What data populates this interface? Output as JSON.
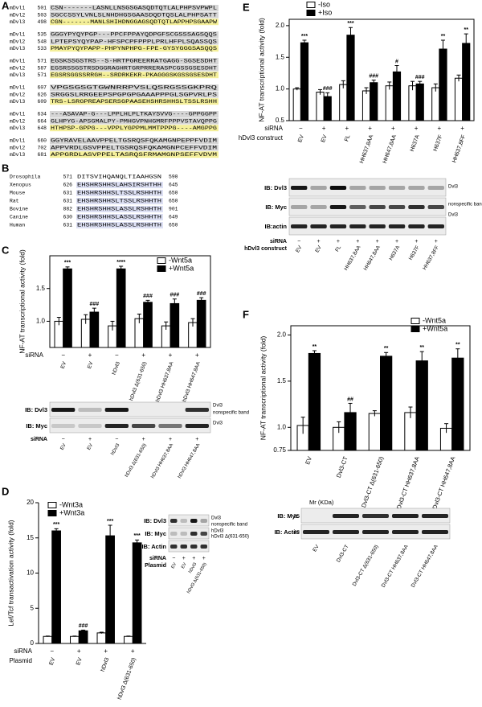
{
  "panel_labels": [
    "A",
    "B",
    "C",
    "D",
    "E",
    "F"
  ],
  "alignment_a": {
    "blocks": [
      [
        {
          "name": "mDvl1",
          "start": 501,
          "seq": "CSN-------LASNLLNSGSGASQDTQTLALPHPSVPWPL"
        },
        {
          "name": "mDvl2",
          "start": 503,
          "seq": "SGCCSSYLVNLSLNHDHGSGAASDQDTQSLALPHPSATT"
        },
        {
          "name": "mDvl3",
          "start": 498,
          "seq": "CGN-------MANLSHIHDNGGAGSQDTQTLAPPHPSGAAPW"
        }
      ],
      [
        {
          "name": "mDvl1",
          "start": 535,
          "seq": "GGGYPYQYPGP---PPCFPPAYQDPGFSCGSSSAGSQQS"
        },
        {
          "name": "mDvl2",
          "start": 548,
          "seq": "LPTEPSYQYPAP-HFSPCPFPPPLPRLHFPLSQASSQS"
        },
        {
          "name": "mDvl3",
          "start": 533,
          "seq": "PMAYPYQYPAPP-PHPYNPHPG-FPE-GYSYGGGSASQQS"
        }
      ],
      [
        {
          "name": "mDvl1",
          "start": 571,
          "seq": "EGSKSSGSTRS--S-HRTPGREERRATGAGG-SGSESDHT"
        },
        {
          "name": "mDvl2",
          "start": 587,
          "seq": "EGSRSSGSTRSDGGRAGHRTGRPRRERASPCGSSGSESDHT"
        },
        {
          "name": "mDvl3",
          "start": 571,
          "seq": "EGSRSGGSSRRGH--SRDRKEKR-PKAGGGSKGSSGSESDHT"
        }
      ],
      [
        {
          "name": "mDvl1",
          "start": 607,
          "seq": "VPGSGSGTGWNRRPVSLQSRGSSGKPRQ"
        },
        {
          "name": "mDvl2",
          "start": 626,
          "seq": "SRGGSLRRGEEPSPGPGPGAAAPPPGLSGPVRLPS"
        },
        {
          "name": "mDvl3",
          "start": 609,
          "seq": "TRS-LSRGPREAPSERSGPAASEHSHRSHHSLTSSLRSHH"
        }
      ],
      [
        {
          "name": "mDvl1",
          "start": 634,
          "seq": "---ASAVAP-G---LPPLHLPLTKAYSVVG----GPPGGPP"
        },
        {
          "name": "mDvl2",
          "start": 664,
          "seq": "GLHPYG-APSGMALPY-PMHGVPNHGMRFPPPVSTAVQPPG"
        },
        {
          "name": "mDvl3",
          "start": 648,
          "seq": "HTHPSP-GPPG---VPPLYGPPMLMMTPPPG----AMGPPG"
        }
      ],
      [
        {
          "name": "mDvl1",
          "start": 660,
          "seq": "GGYRAVELAAVPPELTGSRQSFQKAMGNPEPPFVDIM"
        },
        {
          "name": "mDvl2",
          "start": 702,
          "seq": "APPVRDLGSVPPELTGSRQSFQKAMGNPCEFFVDIM"
        },
        {
          "name": "mDvl3",
          "start": 681,
          "seq": "APPGRDLASVPPELTASRQSFRMAMGNPSEFFVDVM"
        }
      ]
    ]
  },
  "alignment_b": {
    "rows": [
      {
        "species": "Drosophila",
        "start": 571,
        "seq": "DITSVIHQANQLTIAAHGSN",
        "end": 590
      },
      {
        "species": "Xenopus",
        "start": 626,
        "seq": "EHSHRSHHSLAHSIRSHTHH",
        "end": 645
      },
      {
        "species": "Mouse",
        "start": 631,
        "seq": "EHSHRSHHSLTSSLRSHHTH",
        "end": 650
      },
      {
        "species": "Rat",
        "start": 631,
        "seq": "EHSHRSHHSLTSSLRSHHTH",
        "end": 650
      },
      {
        "species": "Bovine",
        "start": 882,
        "seq": "EHSHRSHHSLASSLRSHHTH",
        "end": 901
      },
      {
        "species": "Canine",
        "start": 630,
        "seq": "EHSHRSHHSLASSLRSHHTH",
        "end": 649
      },
      {
        "species": "Human",
        "start": 631,
        "seq": "EHSHRSHHSLASSLRSHHTH",
        "end": 650
      }
    ]
  },
  "chart_data": [
    {
      "type": "bar",
      "ylabel": "NF-AT transcriptional activity (fold)",
      "categories": [
        "EV",
        "EV",
        "hDvl3",
        "hDvl3 Δ(631-650)",
        "hDvl3 HH637,8AA",
        "hDvl3 HH647,8AA"
      ],
      "rows": [
        {
          "label": "siRNA",
          "values": [
            "−",
            "+",
            "−",
            "+",
            "+",
            "+"
          ]
        }
      ],
      "series": [
        {
          "name": "-Wnt5a",
          "color": "#ffffff",
          "values": [
            1.0,
            1.03,
            0.93,
            1.04,
            0.93,
            0.98
          ],
          "errors": [
            0.06,
            0.07,
            0.07,
            0.07,
            0.06,
            0.06
          ]
        },
        {
          "name": "+Wnt5a",
          "color": "#000000",
          "values": [
            1.8,
            1.14,
            1.8,
            1.29,
            1.27,
            1.32
          ],
          "errors": [
            0.03,
            0.06,
            0.04,
            0.03,
            0.07,
            0.04
          ],
          "annotations": [
            "***",
            "###",
            "****",
            "###",
            "###",
            "###"
          ]
        }
      ],
      "ylim": [
        0.6,
        2.0
      ],
      "yticks": [
        {
          "value": 1,
          "label": "1.0"
        },
        1.5
      ]
    },
    {
      "type": "bar",
      "ylabel": "Lef/Tcf transactivation activity (fold)",
      "categories": [
        "EV",
        "EV",
        "hDvl3",
        "hDvl3 Δ(631-650)"
      ],
      "category_label": "Plasmid",
      "rows": [
        {
          "label": "siRNA",
          "values": [
            "−",
            "+",
            "+",
            "+"
          ]
        }
      ],
      "series": [
        {
          "name": "-Wnt3a",
          "color": "#ffffff",
          "values": [
            1,
            1,
            1.5,
            1
          ],
          "errors": [
            0.05,
            0.05,
            0.1,
            0.05
          ]
        },
        {
          "name": "+Wnt3a",
          "color": "#000000",
          "values": [
            16,
            1.8,
            15.3,
            14.3
          ],
          "errors": [
            0.3,
            0.1,
            1.5,
            0.4
          ],
          "annotations": [
            "***",
            "###",
            "***",
            "***"
          ]
        }
      ],
      "ylim": [
        0,
        20
      ],
      "yticks": [
        0,
        5,
        10,
        15,
        20
      ]
    },
    {
      "type": "bar",
      "ylabel": "NF-AT transcriptional activity (fold)",
      "categories": [
        "EV",
        "EV",
        "FL",
        "HH637,8AA",
        "HH647,8AA",
        "H637A",
        "H637F",
        "HH637,8FF"
      ],
      "category_label": "hDvl3 construct",
      "rows": [
        {
          "label": "siRNA",
          "values": [
            "−",
            "+",
            "+",
            "+",
            "+",
            "+",
            "+",
            "+"
          ]
        }
      ],
      "series": [
        {
          "name": "-Iso",
          "color": "#ffffff",
          "values": [
            1.0,
            0.95,
            1.07,
            0.97,
            1.05,
            1.05,
            1.02,
            1.17
          ],
          "errors": [
            0.02,
            0.04,
            0.06,
            0.05,
            0.06,
            0.07,
            0.06,
            0.05
          ]
        },
        {
          "name": "+Iso",
          "color": "#000000",
          "values": [
            1.73,
            0.88,
            1.85,
            1.1,
            1.27,
            1.08,
            1.63,
            1.72
          ],
          "errors": [
            0.04,
            0.06,
            0.12,
            0.04,
            0.1,
            0.04,
            0.14,
            0.15
          ],
          "annotations": [
            "***",
            "###",
            "***",
            "###",
            "#",
            "###",
            "**",
            "**"
          ]
        }
      ],
      "ylim": [
        0.5,
        2.1
      ],
      "yticks": [
        0.5,
        {
          "value": 1,
          "label": "1.0"
        },
        1.5,
        {
          "value": 2,
          "label": "2.0"
        }
      ]
    },
    {
      "type": "bar",
      "ylabel": "NF-AT transcriptional activity (fold)",
      "categories": [
        "EV",
        "Dvl3-CT",
        "Dvl3-CT Δ(631-650)",
        "Dvl3-CT HH637,8AA",
        "Dvl3-CT HH647,8AA"
      ],
      "rows": [],
      "series": [
        {
          "name": "-Wnt5a",
          "color": "#ffffff",
          "values": [
            1.02,
            1.0,
            1.15,
            1.16,
            0.99
          ],
          "errors": [
            0.09,
            0.06,
            0.03,
            0.06,
            0.05
          ]
        },
        {
          "name": "+Wnt5a",
          "color": "#000000",
          "values": [
            1.8,
            1.16,
            1.77,
            1.72,
            1.75
          ],
          "errors": [
            0.03,
            0.1,
            0.04,
            0.1,
            0.1
          ],
          "annotations": [
            "**",
            "##",
            "**",
            "**",
            "**"
          ]
        }
      ],
      "ylim": [
        0.75,
        2.1
      ],
      "yticks": [
        0.75,
        {
          "value": 1,
          "label": "1.0"
        },
        1.5,
        {
          "value": 2,
          "label": "2.0"
        }
      ]
    }
  ],
  "blots": {
    "c": {
      "rows": [
        "IB: Dvl3",
        "IB: Myc"
      ],
      "right": [
        "Dvl3",
        "nonspecific band",
        "Dvl3"
      ],
      "row_labels": [
        "siRNA"
      ],
      "siRNA": [
        "−",
        "+",
        "−",
        "+",
        "+",
        "+"
      ],
      "lanes": [
        "EV",
        "EV",
        "hDvl3",
        "hDvl3 Δ(631-650)",
        "hDvl3 HH637,8AA",
        "hDvl3 HH647,8AA"
      ]
    },
    "d": {
      "rows": [
        "IB: Dvl3",
        "IB: Myc",
        "IB: Actin"
      ],
      "right": [
        "Dvl3",
        "nonspecific band",
        "hDvl3",
        "hDvl3 Δ(631-650)"
      ],
      "row_labels": [
        "siRNA",
        "Plasmid"
      ],
      "siRNA": [
        "−",
        "+",
        "+",
        "+"
      ],
      "lanes": [
        "EV",
        "EV",
        "hDvl3",
        "hDvl3 Δ(631-650)"
      ]
    },
    "e": {
      "rows": [
        "IB: Dvl3",
        "IB: Myc",
        "IB:actin"
      ],
      "right": [
        "Dvl3",
        "nonspecific bands",
        "Dvl3"
      ],
      "row_labels": [
        "siRNA",
        "hDvl3 construct"
      ],
      "siRNA": [
        "−",
        "+",
        "+",
        "+",
        "+",
        "+",
        "+",
        "+"
      ],
      "lanes": [
        "EV",
        "EV",
        "FL",
        "HH637,8AA",
        "HH647,8AA",
        "H637A",
        "H637F",
        "HH637,8FF"
      ]
    },
    "f": {
      "mr_label": "Mr (KDa)",
      "rows": [
        "IB: Myc",
        "IB: Actin"
      ],
      "markers": [
        25,
        43
      ],
      "lanes": [
        "EV",
        "Dvl3-CT",
        "Dvl3-CT Δ(631-650)",
        "Dvl3-CT HH637,8AA",
        "Dvl3-CT HH647,8AA"
      ]
    }
  }
}
